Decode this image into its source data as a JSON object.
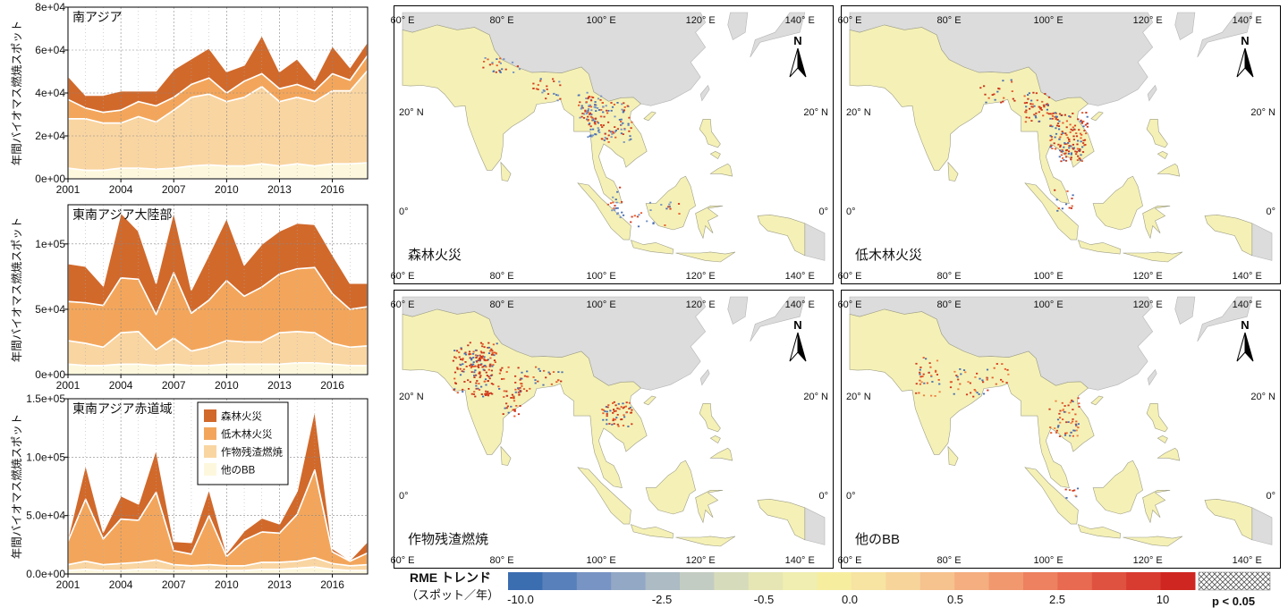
{
  "colors": {
    "forest": "#d1692b",
    "shrub": "#f3a65b",
    "crop": "#f9d5a2",
    "other": "#fdf8dd",
    "land": "#f5f1b6",
    "other_land": "#dcdcdc",
    "sea": "#ffffff"
  },
  "chart_data": [
    {
      "type": "area",
      "stacked": true,
      "title": "南アジア",
      "ylabel": "年間バイオマス燃焼スポット",
      "xlabel": "",
      "x": [
        2001,
        2002,
        2003,
        2004,
        2005,
        2006,
        2007,
        2008,
        2009,
        2010,
        2011,
        2012,
        2013,
        2014,
        2015,
        2016,
        2017,
        2018
      ],
      "xticks": [
        "2001",
        "2004",
        "2007",
        "2010",
        "2013",
        "2016"
      ],
      "ylim": [
        0,
        80000
      ],
      "yticks": [
        "0e+00",
        "2e+04",
        "4e+04",
        "6e+04",
        "8e+04"
      ],
      "grid": true,
      "series": [
        {
          "name": "他のBB",
          "values": [
            5000,
            4000,
            4000,
            5000,
            5000,
            4500,
            5000,
            6000,
            6500,
            6000,
            6000,
            7000,
            6000,
            7000,
            6000,
            7000,
            7000,
            7500
          ]
        },
        {
          "name": "作物残渣燃焼",
          "values": [
            23000,
            24000,
            22000,
            21000,
            24000,
            22000,
            27000,
            32000,
            33000,
            30000,
            32000,
            36000,
            30000,
            31000,
            30000,
            34000,
            34000,
            43000
          ]
        },
        {
          "name": "低木林火災",
          "values": [
            9000,
            5000,
            5000,
            6000,
            7000,
            7500,
            6000,
            6000,
            7500,
            4000,
            7500,
            6000,
            6000,
            6000,
            5000,
            8000,
            5000,
            7000
          ]
        },
        {
          "name": "森林火災",
          "values": [
            11000,
            6000,
            8000,
            9000,
            5000,
            7000,
            13000,
            12000,
            14000,
            10000,
            7500,
            18000,
            8000,
            12000,
            5000,
            13000,
            6000,
            6500
          ]
        }
      ]
    },
    {
      "type": "area",
      "stacked": true,
      "title": "東南アジア大陸部",
      "ylabel": "年間バイオマス燃焼スポット",
      "xlabel": "",
      "x": [
        2001,
        2002,
        2003,
        2004,
        2005,
        2006,
        2007,
        2008,
        2009,
        2010,
        2011,
        2012,
        2013,
        2014,
        2015,
        2016,
        2017,
        2018
      ],
      "xticks": [
        "2001",
        "2004",
        "2007",
        "2010",
        "2013",
        "2016"
      ],
      "ylim": [
        0,
        130000
      ],
      "yticks": [
        "0e+00",
        "5e+04",
        "1e+05"
      ],
      "grid": true,
      "series": [
        {
          "name": "他のBB",
          "values": [
            8000,
            7000,
            7000,
            8000,
            8000,
            7000,
            8000,
            7000,
            7000,
            8000,
            8000,
            8000,
            8000,
            9000,
            9000,
            8000,
            7000,
            7000
          ]
        },
        {
          "name": "作物残渣燃焼",
          "values": [
            18000,
            17000,
            14000,
            24000,
            25000,
            12000,
            20000,
            11000,
            14000,
            18000,
            17000,
            17000,
            24000,
            24000,
            23000,
            16000,
            14000,
            15000
          ]
        },
        {
          "name": "低木林火災",
          "values": [
            30000,
            31000,
            32000,
            42000,
            40000,
            27000,
            50000,
            29000,
            36000,
            46000,
            35000,
            42000,
            45000,
            48000,
            50000,
            38000,
            29000,
            30000
          ]
        },
        {
          "name": "森林火災",
          "values": [
            29000,
            28000,
            15000,
            50000,
            37000,
            24000,
            47000,
            18000,
            35000,
            48000,
            24000,
            33000,
            33000,
            35000,
            33000,
            30000,
            20000,
            18000
          ]
        }
      ]
    },
    {
      "type": "area",
      "stacked": true,
      "title": "東南アジア赤道域",
      "ylabel": "年間バイオマス燃焼スポット",
      "xlabel": "",
      "x": [
        2001,
        2002,
        2003,
        2004,
        2005,
        2006,
        2007,
        2008,
        2009,
        2010,
        2011,
        2012,
        2013,
        2014,
        2015,
        2016,
        2017,
        2018
      ],
      "xticks": [
        "2001",
        "2004",
        "2007",
        "2010",
        "2013",
        "2016"
      ],
      "ylim": [
        0,
        150000
      ],
      "yticks": [
        "0.0e+00",
        "5.0e+04",
        "1.0e+05",
        "1.5e+05"
      ],
      "grid": true,
      "legend": {
        "position": "top-right",
        "entries": [
          "森林火災",
          "低木林火災",
          "作物残渣燃焼",
          "他のBB"
        ]
      },
      "series": [
        {
          "name": "他のBB",
          "values": [
            3000,
            4000,
            3000,
            3000,
            4000,
            4000,
            3000,
            3000,
            3000,
            3000,
            3000,
            4000,
            4000,
            5000,
            6000,
            4000,
            3000,
            3000
          ]
        },
        {
          "name": "作物残渣燃焼",
          "values": [
            5000,
            7000,
            5000,
            6000,
            6000,
            8000,
            5000,
            4000,
            5000,
            4000,
            4000,
            6000,
            6000,
            6000,
            8000,
            5000,
            4000,
            5000
          ]
        },
        {
          "name": "低木林火災",
          "values": [
            20000,
            53000,
            22000,
            38000,
            36000,
            58000,
            12000,
            10000,
            42000,
            8000,
            22000,
            26000,
            25000,
            40000,
            75000,
            10000,
            4000,
            10000
          ]
        },
        {
          "name": "森林火災",
          "values": [
            3000,
            30000,
            6000,
            20000,
            14000,
            37000,
            8000,
            10000,
            23000,
            3000,
            8000,
            12000,
            8000,
            20000,
            52000,
            3000,
            1000,
            10000
          ]
        }
      ]
    }
  ],
  "maps": [
    {
      "label": "森林火災",
      "palette": [
        "#d33a1d",
        "#4a6fb0",
        "#e85a2a",
        "#7592c4"
      ]
    },
    {
      "label": "低木林火災",
      "palette": [
        "#d33a1d",
        "#4a6fb0",
        "#e85a2a",
        "#c83017"
      ]
    },
    {
      "label": "作物残渣燃焼",
      "palette": [
        "#d33a1d",
        "#4a6fb0",
        "#e85a2a",
        "#c83017"
      ]
    },
    {
      "label": "他のBB",
      "palette": [
        "#d33a1d",
        "#4a6fb0",
        "#e85a2a",
        "#f08040"
      ]
    }
  ],
  "map_axes": {
    "top": [
      "60° E",
      "80° E",
      "100° E",
      "120° E",
      "140° E"
    ],
    "bottom": [
      "60° E",
      "80° E",
      "100° E",
      "120° E",
      "140° E"
    ],
    "left": [
      "20° N",
      "0°"
    ],
    "right": [
      "20° N",
      "0°"
    ],
    "north": "N"
  },
  "colorbar": {
    "title": "RME トレンド",
    "subtitle": "（スポット／年）",
    "ticks": [
      "-10.0",
      "-2.5",
      "-0.5",
      "0.0",
      "0.5",
      "2.5",
      "10"
    ],
    "significance": "p < 0.05",
    "colors": [
      "#3b6db1",
      "#5880bb",
      "#7894c4",
      "#93a8c5",
      "#acbbc4",
      "#c3ccc2",
      "#d6dcbb",
      "#e5e6b3",
      "#f0eeb0",
      "#f6ed9f",
      "#f7e3a2",
      "#f7d49a",
      "#f6c28e",
      "#f4ae7f",
      "#f1986f",
      "#ed8160",
      "#e86a51",
      "#e05240",
      "#d83b30",
      "#cf2621"
    ]
  }
}
